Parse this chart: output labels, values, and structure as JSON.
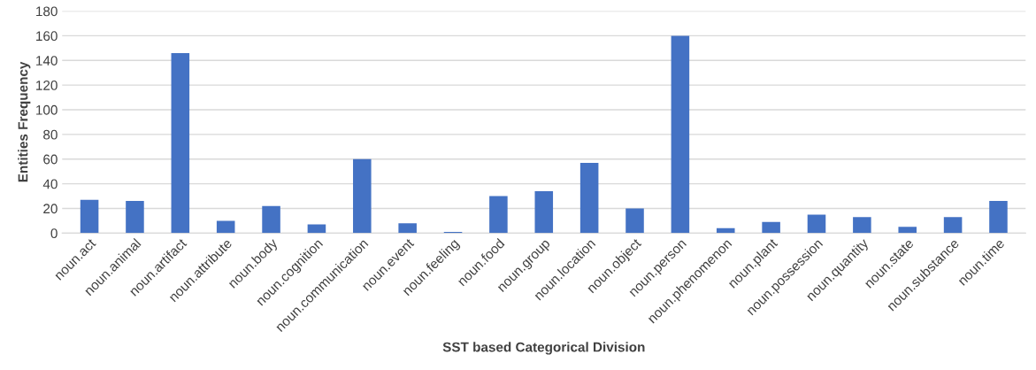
{
  "chart_data": {
    "type": "bar",
    "xlabel": "SST based Categorical Division",
    "ylabel": "Entities Frequency",
    "categories": [
      "noun.act",
      "noun.animal",
      "noun.artifact",
      "noun.attribute",
      "noun.body",
      "noun.cognition",
      "noun.communication",
      "noun.event",
      "noun.feeling",
      "noun.food",
      "noun.group",
      "noun.location",
      "noun.object",
      "noun.person",
      "noun.phenomenon",
      "noun.plant",
      "noun.possession",
      "noun.quantity",
      "noun.state",
      "noun.substance",
      "noun.time"
    ],
    "values": [
      27,
      26,
      146,
      10,
      22,
      7,
      60,
      8,
      1,
      30,
      34,
      57,
      20,
      160,
      4,
      9,
      15,
      13,
      5,
      13,
      26
    ],
    "color": "#4472c4",
    "ylim": [
      0,
      180
    ],
    "yticks": [
      0,
      20,
      40,
      60,
      80,
      100,
      120,
      140,
      160,
      180
    ],
    "grid": "y"
  }
}
